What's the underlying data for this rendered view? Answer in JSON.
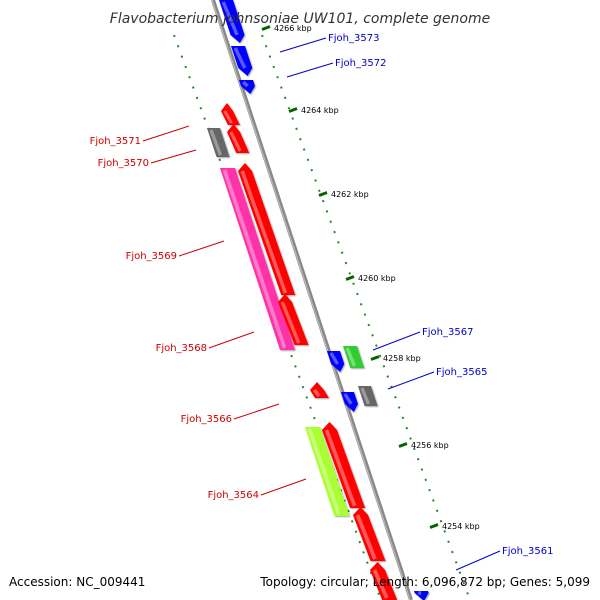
{
  "title": "Flavobacterium johnsoniae UW101, complete genome",
  "footer": {
    "accession": "Accession: NC_009441",
    "topology": "Topology: circular; Length: 6,096,872 bp; Genes: 5,099"
  },
  "colors": {
    "backbone": "#888888",
    "forward_labels": "#0000cc",
    "reverse_labels": "#cc0000",
    "ticks": "#228b22",
    "gene_red": "#ff0000",
    "gene_blue": "#0000ff",
    "gene_gray": "#666666",
    "gene_green": "#33cc33",
    "gene_magenta": "#ff33aa",
    "gene_lime": "#aaff33"
  },
  "tick_labels": [
    "4266 kbp",
    "4264 kbp",
    "4262 kbp",
    "4260 kbp",
    "4258 kbp",
    "4256 kbp",
    "4254 kbp"
  ],
  "forward_genes": [
    {
      "label": "Fjoh_3573"
    },
    {
      "label": "Fjoh_3572"
    },
    {
      "label": "Fjoh_3567"
    },
    {
      "label": "Fjoh_3565"
    },
    {
      "label": "Fjoh_3561"
    }
  ],
  "reverse_genes": [
    {
      "label": "Fjoh_3571"
    },
    {
      "label": "Fjoh_3570"
    },
    {
      "label": "Fjoh_3569"
    },
    {
      "label": "Fjoh_3568"
    },
    {
      "label": "Fjoh_3566"
    },
    {
      "label": "Fjoh_3564"
    }
  ]
}
